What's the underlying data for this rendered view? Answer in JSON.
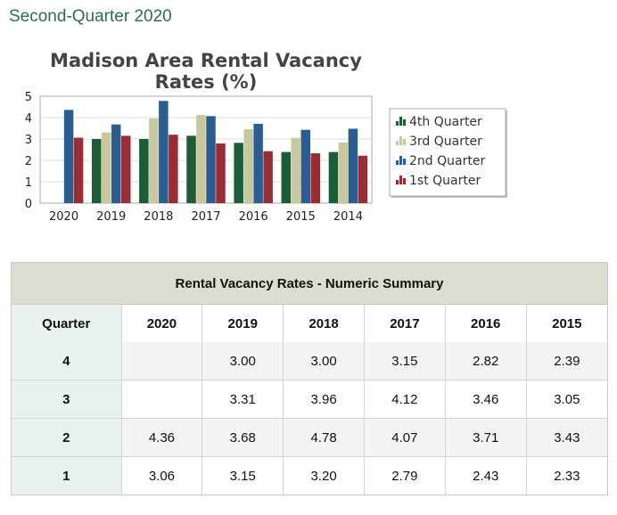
{
  "page": {
    "heading": "Second-Quarter 2020"
  },
  "chart_data": {
    "type": "bar",
    "title_lines": [
      "Madison Area Rental Vacancy",
      "Rates (%)"
    ],
    "categories": [
      "2020",
      "2019",
      "2018",
      "2017",
      "2016",
      "2015",
      "2014"
    ],
    "ylim": [
      0,
      5
    ],
    "yticks": [
      0,
      1,
      2,
      3,
      4,
      5
    ],
    "grid": true,
    "legend_position": "right",
    "series": [
      {
        "name": "4th Quarter",
        "color": "#1c5c36",
        "values": [
          null,
          3.0,
          3.0,
          3.15,
          2.82,
          2.39,
          2.39
        ]
      },
      {
        "name": "3rd Quarter",
        "color": "#c8c79d",
        "values": [
          null,
          3.31,
          3.96,
          4.12,
          3.46,
          3.05,
          2.84
        ]
      },
      {
        "name": "2nd Quarter",
        "color": "#2a5e90",
        "values": [
          4.36,
          3.68,
          4.78,
          4.07,
          3.71,
          3.43,
          3.48
        ]
      },
      {
        "name": "1st Quarter",
        "color": "#9a2c34",
        "values": [
          3.06,
          3.15,
          3.2,
          2.79,
          2.43,
          2.33,
          2.22
        ]
      }
    ]
  },
  "summary_table": {
    "caption": "Rental Vacancy Rates - Numeric Summary",
    "corner_header": "Quarter",
    "columns": [
      "2020",
      "2019",
      "2018",
      "2017",
      "2016",
      "2015"
    ],
    "rows": [
      {
        "quarter": "4",
        "cells": [
          "",
          "3.00",
          "3.00",
          "3.15",
          "2.82",
          "2.39"
        ]
      },
      {
        "quarter": "3",
        "cells": [
          "",
          "3.31",
          "3.96",
          "4.12",
          "3.46",
          "3.05"
        ]
      },
      {
        "quarter": "2",
        "cells": [
          "4.36",
          "3.68",
          "4.78",
          "4.07",
          "3.71",
          "3.43"
        ]
      },
      {
        "quarter": "1",
        "cells": [
          "3.06",
          "3.15",
          "3.20",
          "2.79",
          "2.43",
          "2.33"
        ]
      }
    ]
  }
}
